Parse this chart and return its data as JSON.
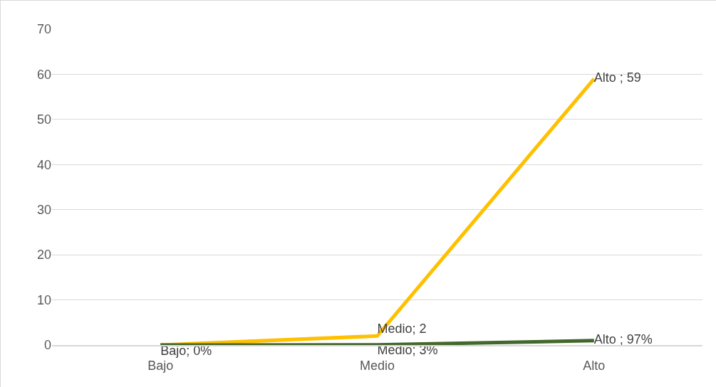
{
  "chart_data": {
    "type": "line",
    "categories": [
      "Bajo",
      "Medio",
      "Alto"
    ],
    "series": [
      {
        "color": "#ffc000",
        "values": [
          0,
          2,
          59
        ],
        "value_labels": [
          null,
          "Medio; 2",
          "Alto ; 59"
        ]
      },
      {
        "color": "#43682b",
        "values": [
          0,
          0.03,
          0.97
        ],
        "value_labels": [
          "Bajo; 0%",
          "Medio; 3%",
          "Alto ; 97%"
        ]
      }
    ],
    "ylim": [
      0,
      70
    ],
    "yticks": [
      0,
      10,
      20,
      30,
      40,
      50,
      60,
      70
    ],
    "grid": "y",
    "marker": "none",
    "line_style": "solid"
  }
}
